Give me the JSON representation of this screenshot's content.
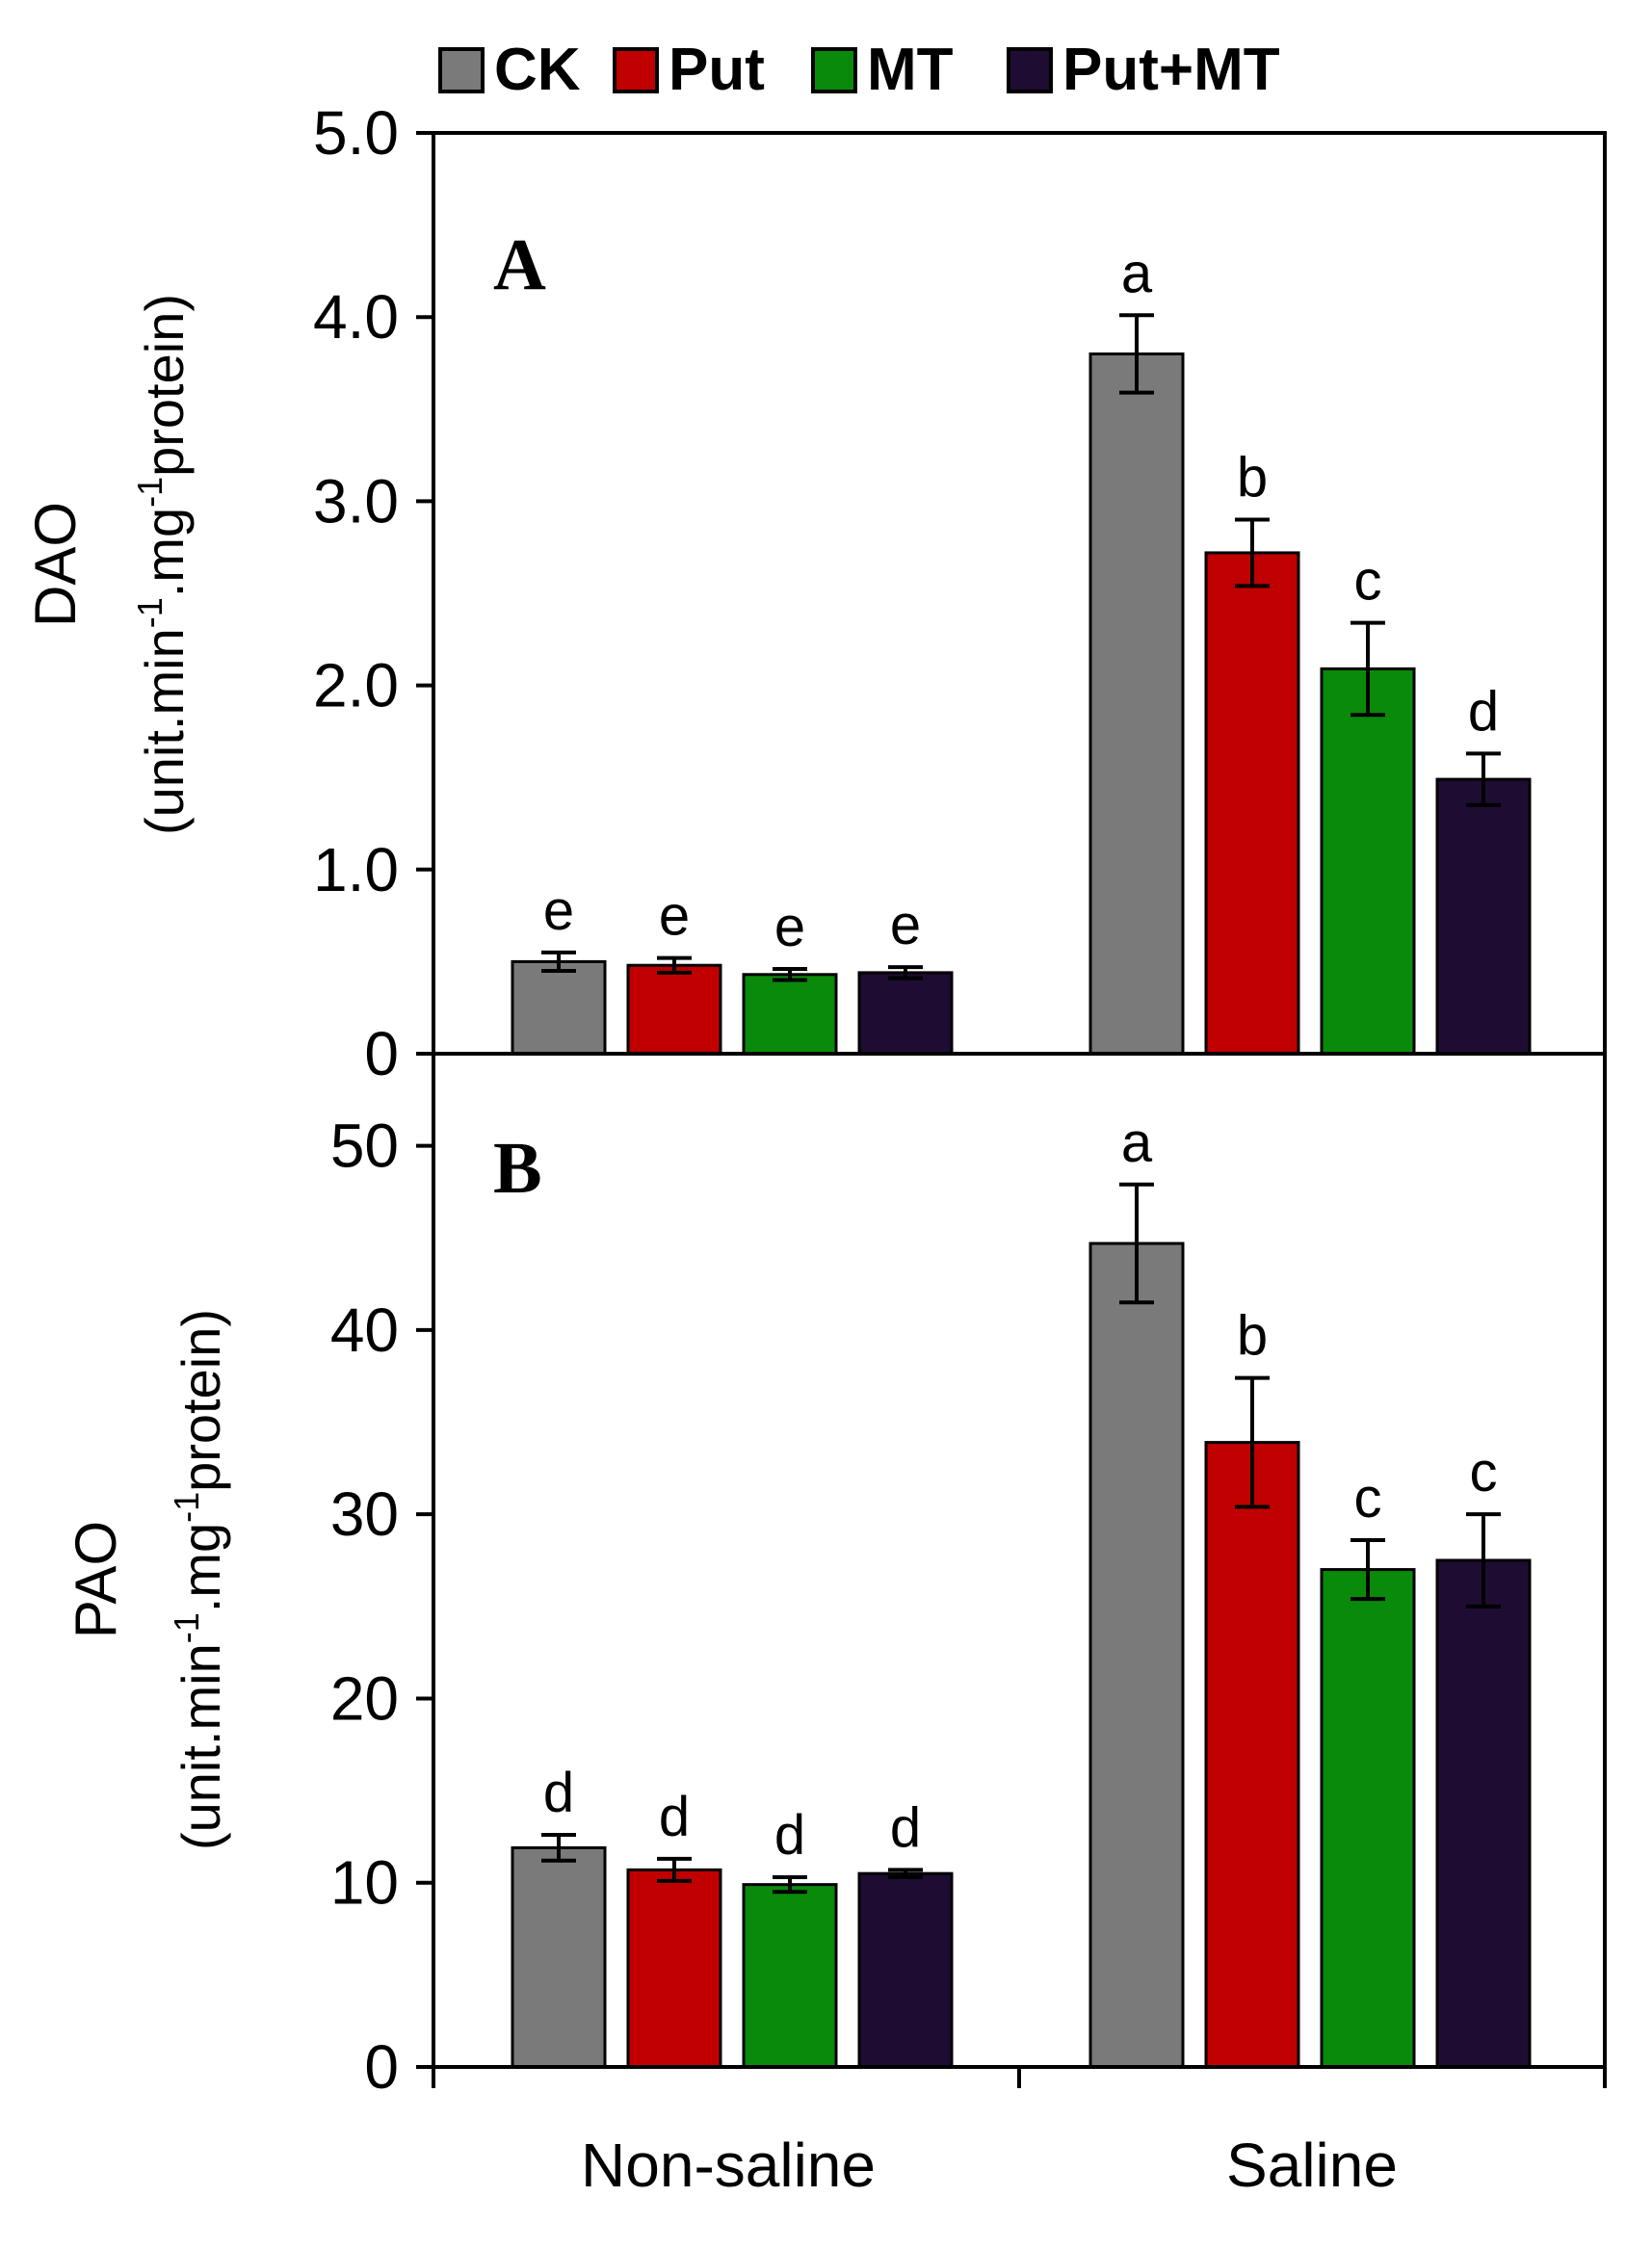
{
  "legend": [
    {
      "name": "CK",
      "color": "#7a7a7a"
    },
    {
      "name": "Put",
      "color": "#c00000"
    },
    {
      "name": "MT",
      "color": "#0a8a0a"
    },
    {
      "name": "Put+MT",
      "color": "#1f0c33"
    }
  ],
  "categories": [
    "Non-saline",
    "Saline"
  ],
  "chart_data": [
    {
      "type": "bar",
      "panel": "A",
      "ylabel_line1": "DAO",
      "ylabel_line2_parts": [
        "(unit.min",
        "-1",
        ".mg",
        "-1",
        "protein)"
      ],
      "ylim": [
        0,
        5.0
      ],
      "yticks": [
        "0",
        "1.0",
        "2.0",
        "3.0",
        "4.0",
        "5.0"
      ],
      "ytick_values": [
        0,
        1,
        2,
        3,
        4,
        5
      ],
      "categories": [
        "Non-saline",
        "Saline"
      ],
      "series": [
        {
          "name": "CK",
          "values": [
            0.5,
            3.8
          ],
          "errors": [
            0.05,
            0.21
          ],
          "letters": [
            "e",
            "a"
          ]
        },
        {
          "name": "Put",
          "values": [
            0.48,
            2.72
          ],
          "errors": [
            0.04,
            0.18
          ],
          "letters": [
            "e",
            "b"
          ]
        },
        {
          "name": "MT",
          "values": [
            0.43,
            2.09
          ],
          "errors": [
            0.03,
            0.25
          ],
          "letters": [
            "e",
            "c"
          ]
        },
        {
          "name": "Put+MT",
          "values": [
            0.44,
            1.49
          ],
          "errors": [
            0.03,
            0.14
          ],
          "letters": [
            "e",
            "d"
          ]
        }
      ]
    },
    {
      "type": "bar",
      "panel": "B",
      "ylabel_line1": "PAO",
      "ylabel_line2_parts": [
        "(unit.min",
        "-1",
        ".mg",
        "-1",
        "protein)"
      ],
      "ylim": [
        0,
        55
      ],
      "yticks": [
        "0",
        "10",
        "20",
        "30",
        "40",
        "50"
      ],
      "ytick_values": [
        0,
        10,
        20,
        30,
        40,
        50
      ],
      "categories": [
        "Non-saline",
        "Saline"
      ],
      "series": [
        {
          "name": "CK",
          "values": [
            11.9,
            44.7
          ],
          "errors": [
            0.7,
            3.2
          ],
          "letters": [
            "d",
            "a"
          ]
        },
        {
          "name": "Put",
          "values": [
            10.7,
            33.9
          ],
          "errors": [
            0.6,
            3.5
          ],
          "letters": [
            "d",
            "b"
          ]
        },
        {
          "name": "MT",
          "values": [
            9.9,
            27.0
          ],
          "errors": [
            0.4,
            1.6
          ],
          "letters": [
            "d",
            "c"
          ]
        },
        {
          "name": "Put+MT",
          "values": [
            10.5,
            27.5
          ],
          "errors": [
            0.2,
            2.5
          ],
          "letters": [
            "d",
            "c"
          ]
        }
      ]
    }
  ]
}
